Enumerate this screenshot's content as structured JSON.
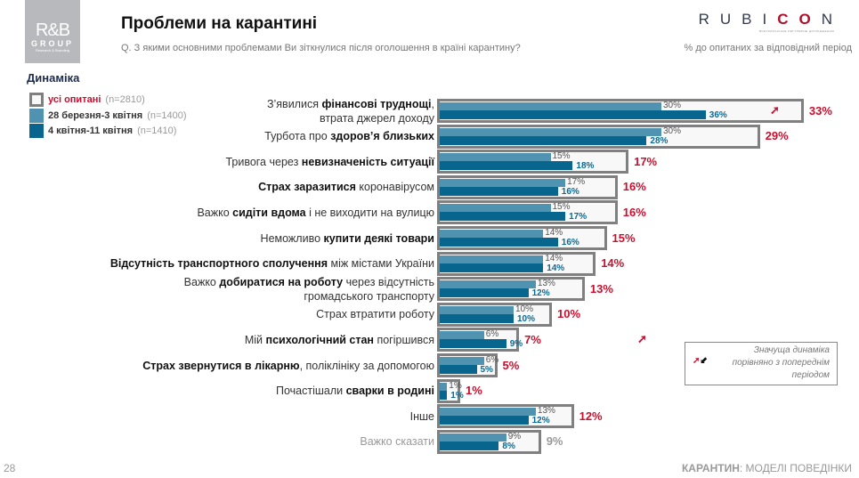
{
  "header": {
    "title": "Проблеми на карантині",
    "question": "Q. З якими основними проблемами Ви зіткнулися після оголошення в країні карантину?",
    "unit": "% до опитаних за відповідний період"
  },
  "logo": {
    "line1": "R&B",
    "line2": "GROUP",
    "line3": "Research & Branding"
  },
  "brand": {
    "name_a": "RUBI",
    "name_b": "CO",
    "name_c": "N",
    "tagline": "ВСЕУКРАЇНСЬКЕ РЕГУЛЯРНЕ ДОСЛІДЖЕННЯ"
  },
  "section": "Динаміка",
  "colors": {
    "total": "#c8102e",
    "period1": "#4f93b0",
    "period2": "#08668e",
    "box": "#808080"
  },
  "legend": [
    {
      "label": "усі опитані",
      "n": "(n=2810)"
    },
    {
      "label": "28 березня-3 квітня",
      "n": "(n=1400)"
    },
    {
      "label": "4 квітня-11 квітня",
      "n": "(n=1410)"
    }
  ],
  "note": {
    "line1": "Значуща динаміка",
    "line2": "порівняно з попереднім",
    "line3": "періодом"
  },
  "footer": {
    "page": "28",
    "section_bold": "КАРАНТИН",
    "section_rest": ": МОДЕЛІ ПОВЕДІНКИ"
  },
  "chart_data": {
    "type": "bar",
    "series": [
      {
        "name": "усі опитані",
        "key": "total"
      },
      {
        "name": "28 березня-3 квітня",
        "key": "p1"
      },
      {
        "name": "4 квітня-11 квітня",
        "key": "p2"
      }
    ],
    "rows": [
      {
        "label": [
          {
            "t": "З’явилися "
          },
          {
            "t": "фінансові труднощі",
            "b": 1
          },
          {
            "t": ","
          },
          {
            "br": 1
          },
          {
            "t": "втрата джерел доходу"
          }
        ],
        "total": 33,
        "p1": 30,
        "p2": 36,
        "arrow": "up-inside"
      },
      {
        "label": [
          {
            "t": "Турбота про "
          },
          {
            "t": "здоров’я близьких",
            "b": 1
          }
        ],
        "total": 29,
        "p1": 30,
        "p2": 28
      },
      {
        "label": [
          {
            "t": "Тривога через "
          },
          {
            "t": "невизначеність ситуації",
            "b": 1
          }
        ],
        "total": 17,
        "p1": 15,
        "p2": 18
      },
      {
        "label": [
          {
            "t": "Страх заразитися",
            "b": 1
          },
          {
            "t": " коронавірусом"
          }
        ],
        "total": 16,
        "p1": 17,
        "p2": 16
      },
      {
        "label": [
          {
            "t": "Важко "
          },
          {
            "t": "сидіти вдома",
            "b": 1
          },
          {
            "t": " і не виходити на вулицю"
          }
        ],
        "total": 16,
        "p1": 15,
        "p2": 17
      },
      {
        "label": [
          {
            "t": "Неможливо "
          },
          {
            "t": "купити деякі товари",
            "b": 1
          }
        ],
        "total": 15,
        "p1": 14,
        "p2": 16
      },
      {
        "label": [
          {
            "t": "Відсутність транспортного сполучення",
            "b": 1
          },
          {
            "t": " між містами України"
          }
        ],
        "total": 14,
        "p1": 14,
        "p2": 14
      },
      {
        "label": [
          {
            "t": "Важко "
          },
          {
            "t": "добиратися на роботу",
            "b": 1
          },
          {
            "t": " через відсутність"
          },
          {
            "br": 1
          },
          {
            "t": "громадського транспорту"
          }
        ],
        "total": 13,
        "p1": 13,
        "p2": 12
      },
      {
        "label": [
          {
            "t": "Страх втратити роботу"
          }
        ],
        "total": 10,
        "p1": 10,
        "p2": 10
      },
      {
        "label": [
          {
            "t": "Мій "
          },
          {
            "t": "психологічний стан",
            "b": 1
          },
          {
            "t": " погіршився"
          }
        ],
        "total": 7,
        "p1": 6,
        "p2": 9,
        "arrow": "up-outside"
      },
      {
        "label": [
          {
            "t": "Страх звернутися в лікарню",
            "b": 1
          },
          {
            "t": ", поліклініку за допомогою"
          }
        ],
        "total": 5,
        "p1": 6,
        "p2": 5
      },
      {
        "label": [
          {
            "t": "Почастішали "
          },
          {
            "t": "сварки в родині",
            "b": 1
          }
        ],
        "total": 1,
        "p1": 1,
        "p2": 1
      },
      {
        "label": [
          {
            "t": "Інше"
          }
        ],
        "total": 12,
        "p1": 13,
        "p2": 12
      },
      {
        "label": [
          {
            "t": "Важко сказати"
          }
        ],
        "total": 9,
        "p1": 9,
        "p2": 8,
        "muted": true
      }
    ]
  }
}
